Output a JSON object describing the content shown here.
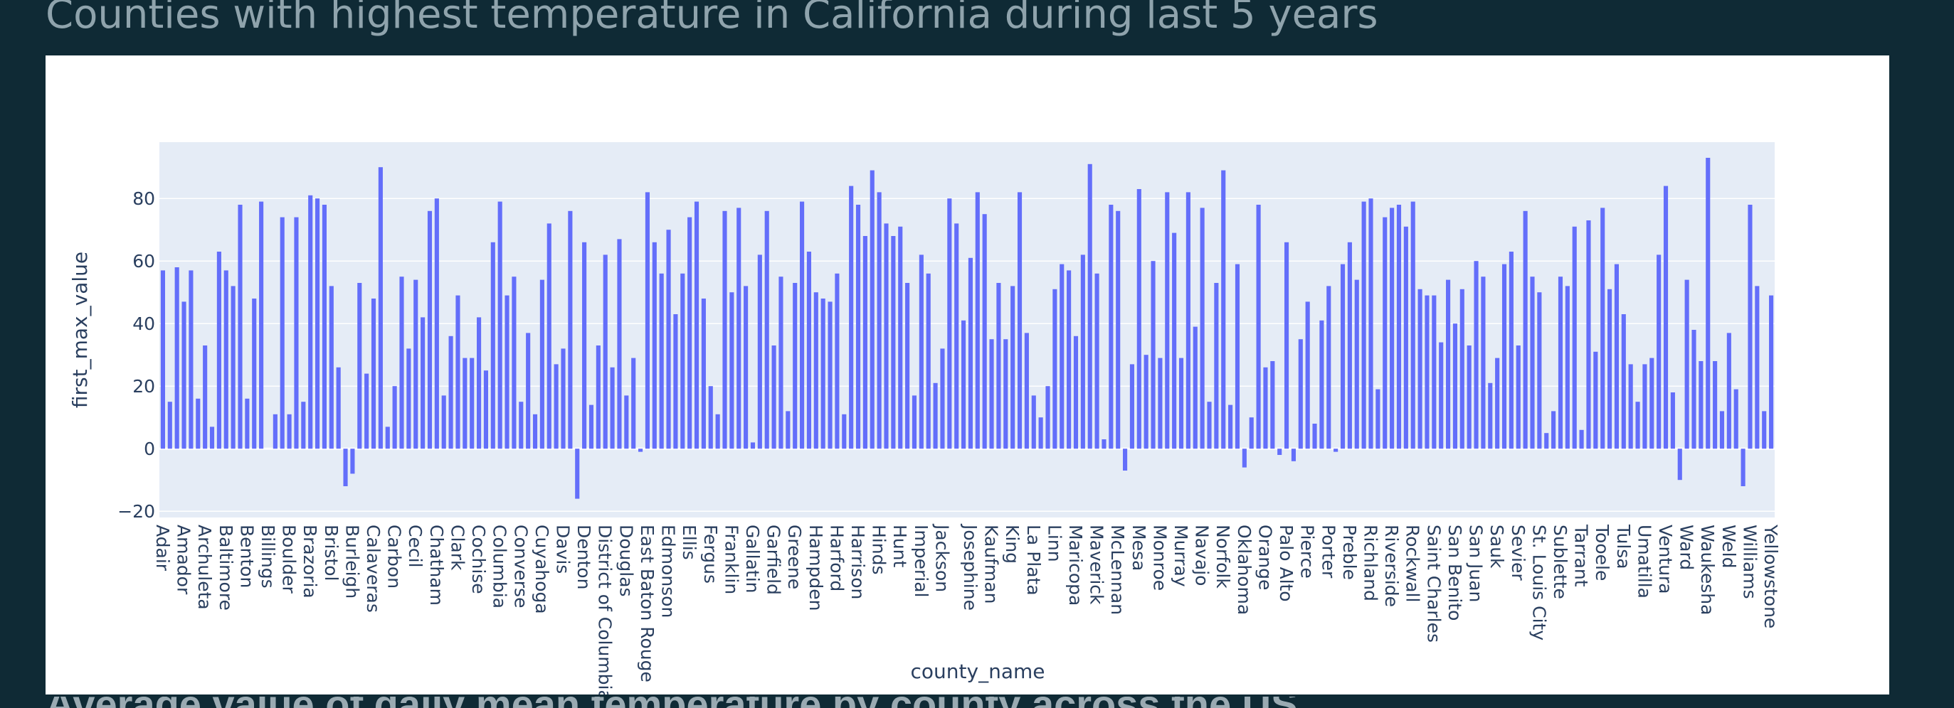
{
  "page": {
    "title": "Counties with highest temperature in California during last 5 years",
    "next_heading": "Average value of daily mean temperature by county across the US"
  },
  "colors": {
    "background": "#0f2a35",
    "plot_background": "#e5ecf6",
    "bar": "#636efa"
  },
  "chart_data": {
    "type": "bar",
    "title": "",
    "xlabel": "county_name",
    "ylabel": "first_max_value",
    "ylim": [
      -22,
      98
    ],
    "yticks": [
      -20,
      0,
      20,
      40,
      60,
      80
    ],
    "grid": true,
    "tick_labels": [
      "Adair",
      "Amador",
      "Archuleta",
      "Baltimore",
      "Benton",
      "Billings",
      "Boulder",
      "Brazoria",
      "Bristol",
      "Burleigh",
      "Calaveras",
      "Carbon",
      "Cecil",
      "Chatham",
      "Clark",
      "Cochise",
      "Columbia",
      "Converse",
      "Cuyahoga",
      "Davis",
      "Denton",
      "District of Columbia",
      "Douglas",
      "East Baton Rouge",
      "Edmonson",
      "Ellis",
      "Fergus",
      "Franklin",
      "Gallatin",
      "Garfield",
      "Greene",
      "Hampden",
      "Harford",
      "Harrison",
      "Hinds",
      "Hunt",
      "Imperial",
      "Jackson",
      "Josephine",
      "Kaufman",
      "King",
      "La Plata",
      "Linn",
      "Maricopa",
      "Maverick",
      "McLennan",
      "Mesa",
      "Monroe",
      "Murray",
      "Navajo",
      "Norfolk",
      "Oklahoma",
      "Orange",
      "Palo Alto",
      "Pierce",
      "Porter",
      "Preble",
      "Richland",
      "Riverside",
      "Rockwall",
      "Saint Charles",
      "San Benito",
      "San Juan",
      "Sauk",
      "Sevier",
      "St. Louis City",
      "Sublette",
      "Tarrant",
      "Tooele",
      "Tulsa",
      "Umatilla",
      "Ventura",
      "Ward",
      "Waukesha",
      "Weld",
      "Williams",
      "Yellowstone"
    ],
    "values": [
      57,
      15,
      58,
      47,
      57,
      16,
      33,
      7,
      63,
      57,
      52,
      78,
      16,
      48,
      79,
      0,
      11,
      74,
      11,
      74,
      15,
      81,
      80,
      78,
      52,
      26,
      -12,
      -8,
      53,
      24,
      48,
      90,
      7,
      20,
      55,
      32,
      54,
      42,
      76,
      80,
      17,
      36,
      49,
      29,
      29,
      42,
      25,
      66,
      79,
      49,
      55,
      15,
      37,
      11,
      54,
      72,
      27,
      32,
      76,
      -16,
      66,
      14,
      33,
      62,
      26,
      67,
      17,
      29,
      -1,
      82,
      66,
      56,
      70,
      43,
      56,
      74,
      79,
      48,
      20,
      11,
      76,
      50,
      77,
      52,
      2,
      62,
      76,
      33,
      55,
      12,
      53,
      79,
      63,
      50,
      48,
      47,
      56,
      11,
      84,
      78,
      68,
      89,
      82,
      72,
      68,
      71,
      53,
      17,
      62,
      56,
      21,
      32,
      80,
      72,
      41,
      61,
      82,
      75,
      35,
      53,
      35,
      52,
      82,
      37,
      17,
      10,
      20,
      51,
      59,
      57,
      36,
      62,
      91,
      56,
      3,
      78,
      76,
      -7,
      27,
      83,
      30,
      60,
      29,
      82,
      69,
      29,
      82,
      39,
      77,
      15,
      53,
      89,
      14,
      59,
      -6,
      10,
      78,
      26,
      28,
      -2,
      66,
      -4,
      35,
      47,
      8,
      41,
      52,
      -1,
      59,
      66,
      54,
      79,
      80,
      19,
      74,
      77,
      78,
      71,
      79,
      51,
      49,
      49,
      34,
      54,
      40,
      51,
      33,
      60,
      55,
      21,
      29,
      59,
      63,
      33,
      76,
      55,
      50,
      5,
      12,
      55,
      52,
      71,
      6,
      73,
      31,
      77,
      51,
      59,
      43,
      27,
      15,
      27,
      29,
      62,
      84,
      18,
      -10,
      54,
      38,
      28,
      93,
      28,
      12,
      37,
      19,
      -12,
      78,
      52,
      12,
      49
    ]
  }
}
